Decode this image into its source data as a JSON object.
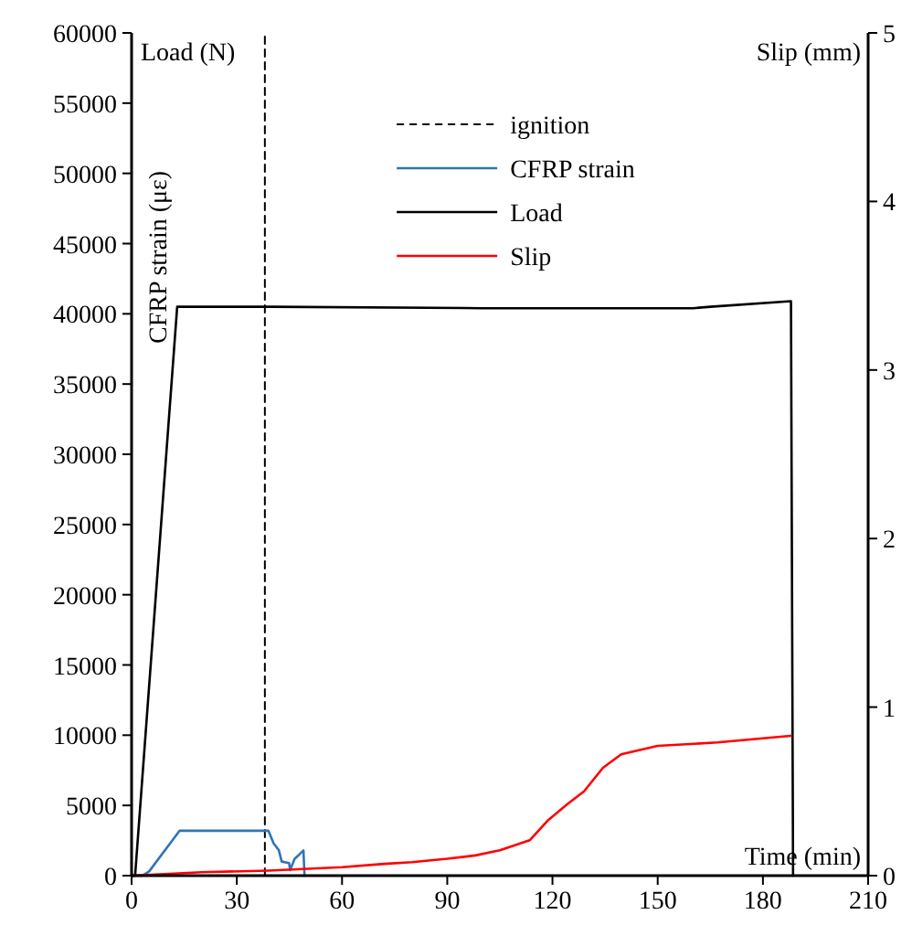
{
  "chart_data": {
    "type": "line",
    "xlabel": "Time (min)",
    "ylabel": "CFRP strain (με)",
    "y2label": "Slip (mm)",
    "annotations": [
      "Load (N)"
    ],
    "xlim": [
      0,
      210
    ],
    "xticks": [
      0,
      30,
      60,
      90,
      120,
      150,
      180,
      210
    ],
    "ylim": [
      0,
      60000
    ],
    "yticks": [
      0,
      5000,
      10000,
      15000,
      20000,
      25000,
      30000,
      35000,
      40000,
      45000,
      50000,
      55000,
      60000
    ],
    "y2lim": [
      0,
      5
    ],
    "y2ticks": [
      0,
      1,
      2,
      3,
      4,
      5
    ],
    "legend": "top",
    "grid": false,
    "series": [
      {
        "name": "ignition",
        "color": "#000000",
        "line_style": "dashed",
        "x": [
          38,
          38
        ],
        "values": [
          0,
          60000
        ]
      },
      {
        "name": "CFRP strain",
        "color": "#2e75b6",
        "x": [
          0,
          3,
          5,
          13.7,
          20,
          30,
          39,
          40.5,
          42,
          42.8,
          44.9,
          45.2,
          46.5,
          47.8,
          49,
          49.3
        ],
        "values": [
          0,
          0,
          300,
          3200,
          3200,
          3200,
          3200,
          2300,
          1800,
          1000,
          900,
          400,
          1200,
          1500,
          1800,
          0
        ]
      },
      {
        "name": "Load",
        "color": "#000000",
        "x": [
          0,
          1,
          13,
          40,
          100,
          140,
          160,
          165,
          188,
          188.6
        ],
        "values": [
          0,
          0,
          40500,
          40500,
          40400,
          40400,
          40400,
          40500,
          40900,
          0
        ]
      },
      {
        "name": "Slip",
        "color": "#ff0000",
        "axis": "y2",
        "x": [
          0,
          20,
          39,
          60,
          72,
          80,
          90,
          98,
          105,
          113.5,
          118.8,
          124,
          129,
          134.4,
          139.6,
          150,
          167,
          188
        ],
        "values": [
          0,
          0.02,
          0.03,
          0.05,
          0.07,
          0.08,
          0.1,
          0.12,
          0.15,
          0.21,
          0.33,
          0.42,
          0.5,
          0.64,
          0.72,
          0.77,
          0.79,
          0.83
        ]
      }
    ]
  }
}
